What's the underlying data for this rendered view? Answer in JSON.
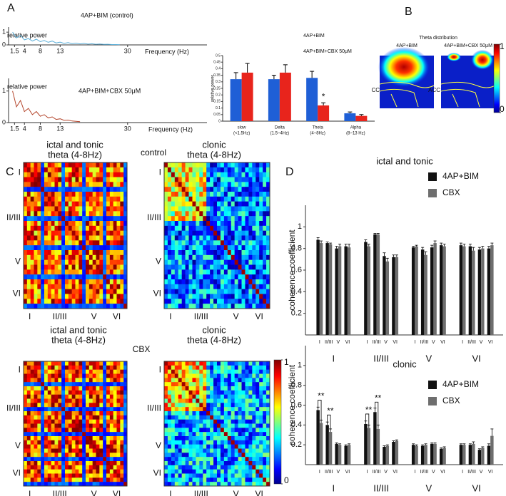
{
  "panel_labels": [
    "A",
    "B",
    "C",
    "D"
  ],
  "chart_data": [
    {
      "type": "line",
      "title": "4AP+BIM (control)",
      "x": [
        1,
        2,
        3,
        4,
        5,
        6,
        7,
        8,
        9,
        10,
        11,
        12,
        13,
        14,
        15,
        16,
        17,
        18,
        19,
        20,
        21,
        22,
        23,
        24,
        25,
        26,
        27,
        28
      ],
      "values": [
        1.0,
        0.55,
        0.75,
        0.4,
        0.5,
        0.3,
        0.45,
        0.25,
        0.35,
        0.2,
        0.3,
        0.15,
        0.22,
        0.12,
        0.18,
        0.1,
        0.14,
        0.08,
        0.12,
        0.06,
        0.09,
        0.05,
        0.07,
        0.04,
        0.05,
        0.03,
        0.03,
        0.02
      ],
      "color": "#5aaed8",
      "xlim": [
        0,
        50
      ],
      "ylim": [
        0,
        1.4
      ],
      "xticks": [
        1.5,
        4,
        8,
        13,
        30
      ],
      "yticks": [
        0,
        1
      ],
      "x_label": "Frequency (Hz)",
      "y_label": "relative power"
    },
    {
      "type": "line",
      "title": "4AP+BIM+CBX 50μM",
      "x": [
        1,
        2,
        3,
        4,
        5,
        6,
        7,
        8,
        9,
        10,
        11,
        12,
        13,
        14,
        15,
        16,
        17,
        18
      ],
      "values": [
        1.0,
        0.5,
        0.7,
        0.35,
        0.45,
        0.25,
        0.35,
        0.2,
        0.25,
        0.15,
        0.18,
        0.1,
        0.12,
        0.07,
        0.08,
        0.05,
        0.04,
        0.03
      ],
      "color": "#b5472e",
      "xlim": [
        0,
        50
      ],
      "ylim": [
        0,
        1.4
      ],
      "xticks": [
        1.5,
        4,
        8,
        13,
        30
      ],
      "yticks": [
        0,
        1
      ],
      "x_label": "Frequency (Hz)",
      "y_label": "relative power"
    },
    {
      "type": "bar",
      "y_label": "relative power",
      "categories": [
        "slow",
        "Delta",
        "Theta",
        "Alpha"
      ],
      "category_notes": [
        "(<1.5Hz)",
        "(1.5~4Hz)",
        "(4~8Hz)",
        "(8~13 Hz)"
      ],
      "series": [
        {
          "name": "4AP+BIM",
          "color": "#1f5fd6",
          "values": [
            0.32,
            0.32,
            0.33,
            0.06
          ],
          "errors": [
            0.05,
            0.03,
            0.05,
            0.01
          ]
        },
        {
          "name": "4AP+BIM+CBX 50μM",
          "color": "#e8241c",
          "values": [
            0.37,
            0.37,
            0.12,
            0.04
          ],
          "errors": [
            0.07,
            0.06,
            0.02,
            0.01
          ]
        }
      ],
      "ylim": [
        0,
        0.5
      ],
      "yticks": [
        0,
        0.05,
        0.1,
        0.15,
        0.2,
        0.25,
        0.3,
        0.35,
        0.4,
        0.45,
        0.5
      ],
      "annotations": [
        "*"
      ]
    },
    {
      "type": "heatmap",
      "title": "Theta distribution",
      "panels": [
        "4AP+BIM",
        "4AP+BIM+CBX 50μM"
      ],
      "regions": [
        "CC",
        "ACC"
      ],
      "colorbar_ticks": [
        0,
        1
      ]
    },
    {
      "type": "matrix",
      "section_labels": [
        "control",
        "CBX"
      ],
      "panels": [
        {
          "title": "ictal  and tonic",
          "subtitle": "theta (4-8Hz)"
        },
        {
          "title": "clonic",
          "subtitle": "theta (4-8Hz)"
        },
        {
          "title": "ictal and tonic",
          "subtitle": "theta (4-8Hz)"
        },
        {
          "title": "clonic",
          "subtitle": "theta (4-8Hz)"
        }
      ],
      "axis_labels": [
        "I",
        "II/III",
        "V",
        "VI"
      ],
      "colorbar_ticks": [
        0,
        1
      ]
    },
    {
      "type": "grouped-bar",
      "title": "ictal and tonic",
      "groups": [
        "I",
        "II/III",
        "V",
        "VI"
      ],
      "categories": [
        "I",
        "II/III",
        "V",
        "VI",
        "I",
        "II/III",
        "V",
        "VI",
        "I",
        "II/III",
        "V",
        "VI",
        "I",
        "II/III",
        "V",
        "VI"
      ],
      "series": [
        {
          "name": "4AP+BIM",
          "color": "#111111",
          "values": [
            0.88,
            0.85,
            0.8,
            0.82,
            0.86,
            0.93,
            0.73,
            0.72,
            0.81,
            0.79,
            0.81,
            0.83,
            0.83,
            0.82,
            0.79,
            0.8
          ],
          "errors": [
            0.02,
            0.01,
            0.02,
            0.02,
            0.02,
            0.01,
            0.03,
            0.02,
            0.01,
            0.02,
            0.02,
            0.02,
            0.02,
            0.02,
            0.02,
            0.02
          ]
        },
        {
          "name": "CBX",
          "color": "#6e6e6e",
          "values": [
            0.85,
            0.84,
            0.82,
            0.81,
            0.82,
            0.93,
            0.68,
            0.72,
            0.82,
            0.74,
            0.85,
            0.82,
            0.82,
            0.78,
            0.8,
            0.83
          ],
          "errors": [
            0.02,
            0.01,
            0.02,
            0.03,
            0.02,
            0.01,
            0.03,
            0.02,
            0.01,
            0.03,
            0.02,
            0.02,
            0.02,
            0.03,
            0.02,
            0.02
          ]
        }
      ],
      "ylim": [
        0,
        1.2
      ],
      "yticks": [
        0.2,
        0.4,
        0.6,
        0.8,
        1
      ],
      "y_label": "coherence coefficient"
    },
    {
      "type": "grouped-bar",
      "title": "clonic",
      "groups": [
        "I",
        "II/III",
        "V",
        "VI"
      ],
      "categories": [
        "I",
        "II/III",
        "V",
        "VI",
        "I",
        "II/III",
        "V",
        "VI",
        "I",
        "II/III",
        "V",
        "VI",
        "I",
        "II/III",
        "V",
        "VI"
      ],
      "series": [
        {
          "name": "4AP+BIM",
          "color": "#111111",
          "values": [
            0.55,
            0.4,
            0.21,
            0.19,
            0.41,
            0.53,
            0.18,
            0.23,
            0.2,
            0.19,
            0.21,
            0.16,
            0.2,
            0.2,
            0.15,
            0.19
          ],
          "errors": [
            0.03,
            0.03,
            0.01,
            0.01,
            0.03,
            0.04,
            0.01,
            0.01,
            0.01,
            0.01,
            0.01,
            0.01,
            0.01,
            0.01,
            0.01,
            0.02
          ]
        },
        {
          "name": "CBX",
          "color": "#6e6e6e",
          "values": [
            0.42,
            0.33,
            0.2,
            0.2,
            0.37,
            0.36,
            0.19,
            0.24,
            0.19,
            0.2,
            0.21,
            0.17,
            0.2,
            0.21,
            0.17,
            0.29
          ],
          "errors": [
            0.03,
            0.03,
            0.01,
            0.01,
            0.03,
            0.04,
            0.01,
            0.01,
            0.01,
            0.01,
            0.01,
            0.01,
            0.01,
            0.02,
            0.01,
            0.07
          ]
        }
      ],
      "ylim": [
        0,
        1.2
      ],
      "yticks": [
        0.2,
        0.4,
        0.6,
        0.8,
        1
      ],
      "y_label": "coherence coefficient",
      "annotations": [
        "**",
        "**",
        "**",
        "**"
      ]
    }
  ]
}
